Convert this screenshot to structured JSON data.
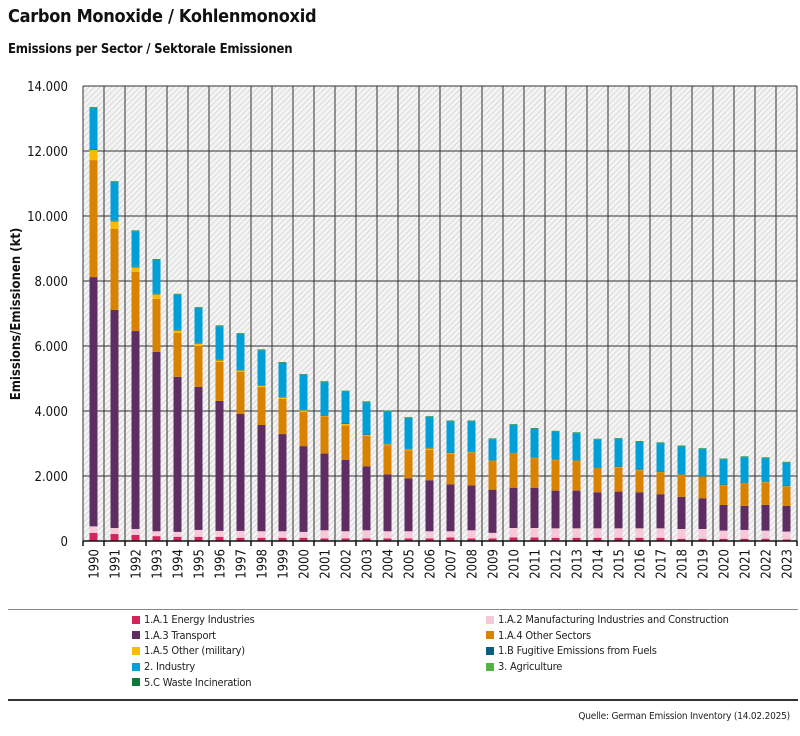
{
  "chart_data": {
    "type": "bar",
    "stacked": true,
    "title": "Carbon Monoxide / Kohlenmonoxid",
    "subtitle": "Emissions per Sector / Sektorale Emissionen",
    "xlabel": "",
    "ylabel": "Emissions/Emissionen (kt)",
    "ylim": [
      0,
      14000
    ],
    "yticks": [
      "0",
      "2.000",
      "4.000",
      "6.000",
      "8.000",
      "10.000",
      "12.000",
      "14.000"
    ],
    "ytick_values": [
      0,
      2000,
      4000,
      6000,
      8000,
      10000,
      12000,
      14000
    ],
    "grid": true,
    "legend_position": "bottom",
    "categories": [
      "1990",
      "1991",
      "1992",
      "1993",
      "1994",
      "1995",
      "1996",
      "1997",
      "1998",
      "1999",
      "2000",
      "2001",
      "2002",
      "2003",
      "2004",
      "2005",
      "2006",
      "2007",
      "2008",
      "2009",
      "2010",
      "2011",
      "2012",
      "2013",
      "2014",
      "2015",
      "2016",
      "2017",
      "2018",
      "2019",
      "2020",
      "2021",
      "2022",
      "2023"
    ],
    "series": [
      {
        "name": "1.A.1 Energy Industries",
        "color": "#d6245a",
        "values": [
          250,
          215,
          185,
          150,
          130,
          130,
          130,
          100,
          100,
          100,
          100,
          80,
          80,
          80,
          80,
          80,
          80,
          110,
          80,
          80,
          110,
          110,
          100,
          100,
          100,
          100,
          100,
          100,
          70,
          70,
          70,
          70,
          70,
          50
        ]
      },
      {
        "name": "1.A.2 Manufacturing Industries and Construction",
        "color": "#f6c8d9",
        "values": [
          200,
          185,
          185,
          150,
          150,
          210,
          180,
          210,
          200,
          200,
          180,
          250,
          220,
          250,
          220,
          220,
          220,
          190,
          250,
          170,
          290,
          290,
          290,
          290,
          290,
          290,
          290,
          290,
          300,
          300,
          250,
          270,
          250,
          240
        ]
      },
      {
        "name": "1.A.3 Transport",
        "color": "#5e2e63",
        "values": [
          7670,
          6710,
          6090,
          5520,
          4770,
          4400,
          4000,
          3600,
          3270,
          2990,
          2640,
          2360,
          2200,
          1970,
          1750,
          1630,
          1570,
          1440,
          1380,
          1330,
          1240,
          1240,
          1160,
          1160,
          1110,
          1130,
          1110,
          1050,
          990,
          940,
          790,
          740,
          790,
          790
        ]
      },
      {
        "name": "1.A.4 Other Sectors",
        "color": "#d98200",
        "values": [
          3600,
          2490,
          1820,
          1630,
          1350,
          1260,
          1200,
          1290,
          1170,
          1080,
          1050,
          1150,
          1060,
          930,
          900,
          860,
          940,
          950,
          1000,
          880,
          1050,
          910,
          940,
          910,
          730,
          750,
          680,
          670,
          670,
          660,
          600,
          690,
          700,
          600
        ]
      },
      {
        "name": "1.A.5 Other (military)",
        "color": "#f8bb00",
        "values": [
          320,
          246,
          150,
          150,
          90,
          90,
          60,
          60,
          50,
          60,
          60,
          20,
          50,
          40,
          35,
          40,
          50,
          30,
          30,
          20,
          20,
          20,
          20,
          20,
          20,
          20,
          20,
          20,
          20,
          20,
          20,
          20,
          20,
          20
        ]
      },
      {
        "name": "1.B Fugitive Emissions from Fuels",
        "color": "#0b5c7e",
        "values": [
          5,
          5,
          5,
          5,
          5,
          5,
          5,
          5,
          5,
          5,
          5,
          5,
          5,
          5,
          5,
          5,
          5,
          5,
          5,
          5,
          5,
          5,
          5,
          5,
          5,
          5,
          5,
          5,
          5,
          5,
          5,
          5,
          5,
          5
        ]
      },
      {
        "name": "2. Industry",
        "color": "#009fd8",
        "values": [
          1280,
          1200,
          1100,
          1050,
          1090,
          1080,
          1040,
          1110,
          1080,
          1050,
          1080,
          1030,
          990,
          1000,
          1005,
          955,
          955,
          960,
          940,
          650,
          860,
          880,
          855,
          840,
          870,
          850,
          850,
          880,
          860,
          840,
          780,
          790,
          720,
          710
        ]
      },
      {
        "name": "3. Agriculture",
        "color": "#56b145",
        "values": [
          5,
          5,
          5,
          5,
          5,
          5,
          5,
          5,
          5,
          5,
          5,
          5,
          5,
          5,
          5,
          5,
          5,
          5,
          5,
          5,
          5,
          5,
          5,
          5,
          5,
          5,
          5,
          5,
          5,
          5,
          5,
          5,
          5,
          5
        ]
      },
      {
        "name": "5.C Waste Incineration",
        "color": "#0f7a37",
        "values": [
          20,
          15,
          15,
          15,
          15,
          15,
          15,
          15,
          15,
          15,
          15,
          15,
          15,
          15,
          15,
          15,
          15,
          15,
          15,
          15,
          15,
          15,
          15,
          15,
          15,
          15,
          15,
          15,
          15,
          15,
          15,
          15,
          15,
          15
        ]
      }
    ]
  },
  "source": "Quelle: German Emission Inventory (14.02.2025)"
}
